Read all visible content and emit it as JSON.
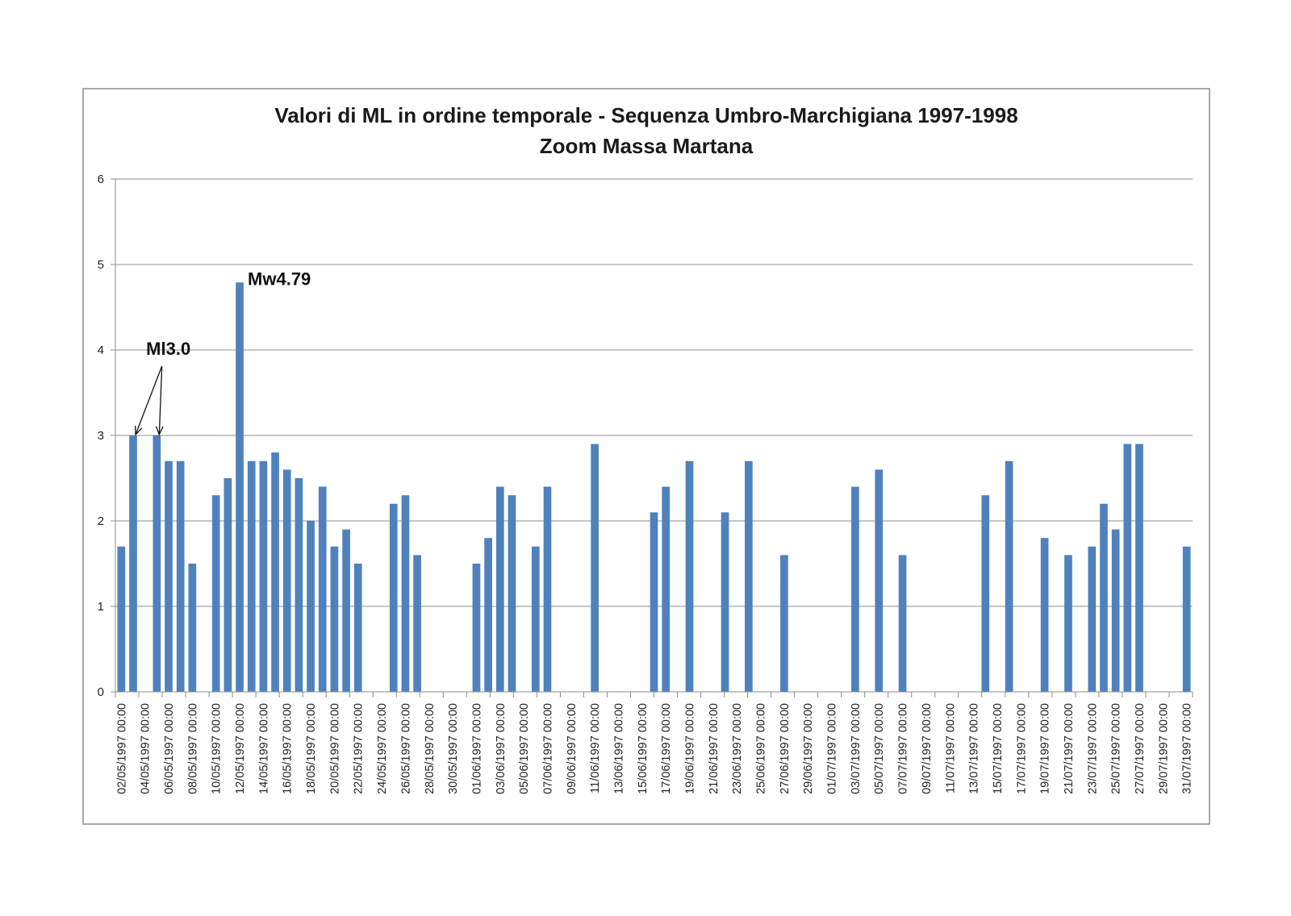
{
  "chart_data": {
    "type": "bar",
    "title": "Valori di ML in ordine temporale - Sequenza Umbro-Marchigiana 1997-1998",
    "subtitle": "Zoom Massa Martana",
    "xlabel": "",
    "ylabel": "",
    "ylim": [
      0,
      6
    ],
    "yticks": [
      0,
      1,
      2,
      3,
      4,
      5,
      6
    ],
    "grid": true,
    "legend": "none",
    "bar_color": "#4f81bd",
    "categories": [
      "02/05/1997 00:00",
      "04/05/1997 00:00",
      "06/05/1997 00:00",
      "08/05/1997 00:00",
      "10/05/1997 00:00",
      "12/05/1997 00:00",
      "14/05/1997 00:00",
      "16/05/1997 00:00",
      "18/05/1997 00:00",
      "20/05/1997 00:00",
      "22/05/1997 00:00",
      "24/05/1997 00:00",
      "26/05/1997 00:00",
      "28/05/1997 00:00",
      "30/05/1997 00:00",
      "01/06/1997 00:00",
      "03/06/1997 00:00",
      "05/06/1997 00:00",
      "07/06/1997 00:00",
      "09/06/1997 00:00",
      "11/06/1997 00:00",
      "13/06/1997 00:00",
      "15/06/1997 00:00",
      "17/06/1997 00:00",
      "19/06/1997 00:00",
      "21/06/1997 00:00",
      "23/06/1997 00:00",
      "25/06/1997 00:00",
      "27/06/1997 00:00",
      "29/06/1997 00:00",
      "01/07/1997 00:00",
      "03/07/1997 00:00",
      "05/07/1997 00:00",
      "07/07/1997 00:00",
      "09/07/1997 00:00",
      "11/07/1997 00:00",
      "13/07/1997 00:00",
      "15/07/1997 00:00",
      "17/07/1997 00:00",
      "19/07/1997 00:00",
      "21/07/1997 00:00",
      "23/07/1997 00:00",
      "25/07/1997 00:00",
      "27/07/1997 00:00",
      "29/07/1997 00:00",
      "31/07/1997 00:00"
    ],
    "x": [
      "02/05/1997",
      "03/05/1997",
      "05/05/1997",
      "06/05/1997",
      "07/05/1997",
      "08/05/1997",
      "10/05/1997",
      "11/05/1997",
      "12/05/1997",
      "13/05/1997",
      "14/05/1997",
      "15/05/1997",
      "16/05/1997",
      "17/05/1997",
      "18/05/1997",
      "19/05/1997",
      "20/05/1997",
      "21/05/1997",
      "22/05/1997",
      "25/05/1997",
      "26/05/1997",
      "27/05/1997",
      "01/06/1997",
      "02/06/1997",
      "03/06/1997",
      "04/06/1997",
      "06/06/1997",
      "07/06/1997",
      "11/06/1997",
      "16/06/1997",
      "17/06/1997",
      "19/06/1997",
      "22/06/1997",
      "24/06/1997",
      "27/06/1997",
      "03/07/1997",
      "05/07/1997",
      "07/07/1997",
      "14/07/1997",
      "16/07/1997",
      "19/07/1997",
      "21/07/1997",
      "23/07/1997",
      "24/07/1997",
      "25/07/1997",
      "26/07/1997",
      "27/07/1997",
      "31/07/1997"
    ],
    "values": [
      1.7,
      3.0,
      3.0,
      2.7,
      2.7,
      1.5,
      2.3,
      2.5,
      4.79,
      2.7,
      2.7,
      2.8,
      2.6,
      2.5,
      2.0,
      2.4,
      1.7,
      1.9,
      1.5,
      2.2,
      2.3,
      1.6,
      1.5,
      1.8,
      2.4,
      2.3,
      1.7,
      2.4,
      2.9,
      2.1,
      2.4,
      2.7,
      2.1,
      2.7,
      1.6,
      2.4,
      2.6,
      1.6,
      2.3,
      2.7,
      1.8,
      1.6,
      1.7,
      2.2,
      1.9,
      2.9,
      2.9,
      1.7
    ],
    "annotations": [
      {
        "text": "Mw4.79",
        "x": "12/05/1997",
        "y": 4.79
      },
      {
        "text": "Ml3.0",
        "targets": [
          "03/05/1997",
          "05/05/1997"
        ],
        "y": 3.0
      }
    ]
  }
}
